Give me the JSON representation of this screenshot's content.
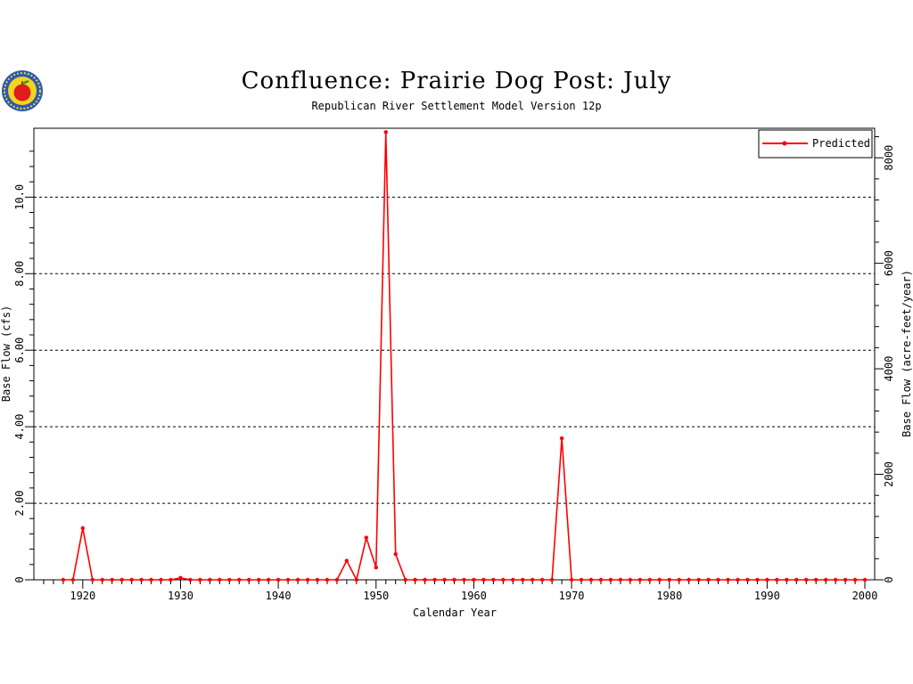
{
  "title": "Confluence: Prairie Dog Post: July",
  "subtitle": "Republican River Settlement Model Version 12p",
  "logo": {
    "icon": "apple-seal-icon",
    "colors": {
      "ring": "#2a58b8",
      "inner": "#f2d51f",
      "apple": "#e21b1b",
      "leaf": "#2d9a2d"
    }
  },
  "chart_data": {
    "type": "line",
    "title": "Confluence: Prairie Dog Post: July",
    "subtitle": "Republican River Settlement Model Version 12p",
    "xlabel": "Calendar Year",
    "ylabel": "Base Flow (cfs)",
    "y2label": "Base Flow (acre-feet/year)",
    "xlim": [
      1915,
      2001
    ],
    "ylim": [
      0,
      11.8
    ],
    "y2lim": [
      0,
      8560
    ],
    "xticks": [
      "1920",
      "1930",
      "1940",
      "1950",
      "1960",
      "1970",
      "1980",
      "1990",
      "2000"
    ],
    "yticks": [
      "0",
      "2.00",
      "4.00",
      "6.00",
      "8.00",
      "10.0"
    ],
    "y2ticks": [
      "0",
      "2000",
      "4000",
      "6000",
      "8000"
    ],
    "grid": "horizontal dashed",
    "legend_position": "top-right",
    "series": [
      {
        "name": "Predicted",
        "color": "#ff0000",
        "x": [
          1918,
          1919,
          1920,
          1921,
          1922,
          1923,
          1924,
          1925,
          1926,
          1927,
          1928,
          1929,
          1930,
          1931,
          1932,
          1933,
          1934,
          1935,
          1936,
          1937,
          1938,
          1939,
          1940,
          1941,
          1942,
          1943,
          1944,
          1945,
          1946,
          1947,
          1948,
          1949,
          1950,
          1951,
          1952,
          1953,
          1954,
          1955,
          1956,
          1957,
          1958,
          1959,
          1960,
          1961,
          1962,
          1963,
          1964,
          1965,
          1966,
          1967,
          1968,
          1969,
          1970,
          1971,
          1972,
          1973,
          1974,
          1975,
          1976,
          1977,
          1978,
          1979,
          1980,
          1981,
          1982,
          1983,
          1984,
          1985,
          1986,
          1987,
          1988,
          1989,
          1990,
          1991,
          1992,
          1993,
          1994,
          1995,
          1996,
          1997,
          1998,
          1999,
          2000
        ],
        "values": [
          0,
          0,
          1.35,
          0,
          0,
          0,
          0,
          0,
          0,
          0,
          0,
          0,
          0.05,
          0,
          0,
          0,
          0,
          0,
          0,
          0,
          0,
          0,
          0,
          0,
          0,
          0,
          0,
          0,
          0,
          0.5,
          0,
          1.1,
          0.32,
          11.7,
          0.67,
          0,
          0,
          0,
          0,
          0,
          0,
          0,
          0,
          0,
          0,
          0,
          0,
          0,
          0,
          0,
          0,
          3.7,
          0,
          0,
          0,
          0,
          0,
          0,
          0,
          0,
          0,
          0,
          0,
          0,
          0,
          0,
          0,
          0,
          0,
          0,
          0,
          0,
          0,
          0,
          0,
          0,
          0,
          0,
          0,
          0,
          0,
          0,
          0
        ]
      }
    ]
  }
}
